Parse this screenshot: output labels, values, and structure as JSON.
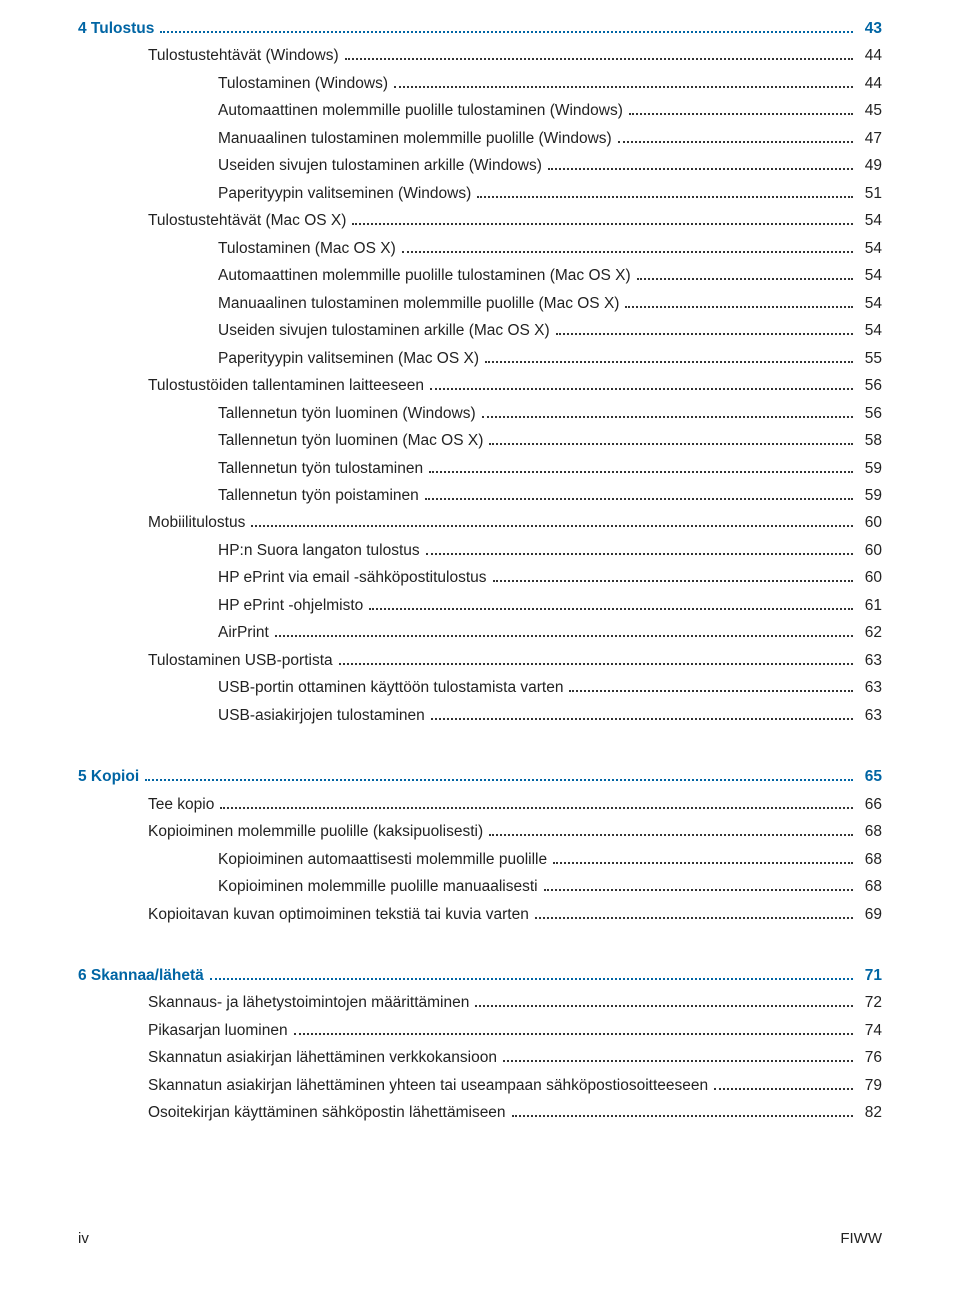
{
  "colors": {
    "link": "#0065a4",
    "text": "#222222",
    "bg": "#ffffff"
  },
  "toc": {
    "entries": [
      {
        "level": 0,
        "title": "4  Tulostus",
        "page": "43",
        "chapter": true
      },
      {
        "level": 1,
        "title": "Tulostustehtävät (Windows)",
        "page": "44"
      },
      {
        "level": 2,
        "title": "Tulostaminen (Windows)",
        "page": "44"
      },
      {
        "level": 2,
        "title": "Automaattinen molemmille puolille tulostaminen (Windows)",
        "page": "45"
      },
      {
        "level": 2,
        "title": "Manuaalinen tulostaminen molemmille puolille (Windows)",
        "page": "47"
      },
      {
        "level": 2,
        "title": "Useiden sivujen tulostaminen arkille (Windows)",
        "page": "49"
      },
      {
        "level": 2,
        "title": "Paperityypin valitseminen (Windows)",
        "page": "51"
      },
      {
        "level": 1,
        "title": "Tulostustehtävät (Mac OS X)",
        "page": "54"
      },
      {
        "level": 2,
        "title": "Tulostaminen (Mac OS X)",
        "page": "54"
      },
      {
        "level": 2,
        "title": "Automaattinen molemmille puolille tulostaminen (Mac OS X)",
        "page": "54"
      },
      {
        "level": 2,
        "title": "Manuaalinen tulostaminen molemmille puolille (Mac OS X)",
        "page": "54"
      },
      {
        "level": 2,
        "title": "Useiden sivujen tulostaminen arkille (Mac OS X)",
        "page": "54"
      },
      {
        "level": 2,
        "title": "Paperityypin valitseminen (Mac OS X)",
        "page": "55"
      },
      {
        "level": 1,
        "title": "Tulostustöiden tallentaminen laitteeseen",
        "page": "56"
      },
      {
        "level": 2,
        "title": "Tallennetun työn luominen (Windows)",
        "page": "56"
      },
      {
        "level": 2,
        "title": "Tallennetun työn luominen (Mac OS X)",
        "page": "58"
      },
      {
        "level": 2,
        "title": "Tallennetun työn tulostaminen",
        "page": "59"
      },
      {
        "level": 2,
        "title": "Tallennetun työn poistaminen",
        "page": "59"
      },
      {
        "level": 1,
        "title": "Mobiilitulostus",
        "page": "60"
      },
      {
        "level": 2,
        "title": "HP:n Suora langaton tulostus",
        "page": "60"
      },
      {
        "level": 2,
        "title": "HP ePrint via email -sähköpostitulostus",
        "page": "60"
      },
      {
        "level": 2,
        "title": "HP ePrint -ohjelmisto",
        "page": "61"
      },
      {
        "level": 2,
        "title": "AirPrint",
        "page": "62"
      },
      {
        "level": 1,
        "title": "Tulostaminen USB-portista",
        "page": "63"
      },
      {
        "level": 2,
        "title": "USB-portin ottaminen käyttöön tulostamista varten",
        "page": "63"
      },
      {
        "level": 2,
        "title": "USB-asiakirjojen tulostaminen",
        "page": "63"
      },
      {
        "spacer": true
      },
      {
        "level": 0,
        "title": "5  Kopioi",
        "page": "65",
        "chapter": true
      },
      {
        "level": 1,
        "title": "Tee kopio",
        "page": "66"
      },
      {
        "level": 1,
        "title": "Kopioiminen molemmille puolille (kaksipuolisesti)",
        "page": "68"
      },
      {
        "level": 2,
        "title": "Kopioiminen automaattisesti molemmille puolille",
        "page": "68"
      },
      {
        "level": 2,
        "title": "Kopioiminen molemmille puolille manuaalisesti",
        "page": "68"
      },
      {
        "level": 1,
        "title": "Kopioitavan kuvan optimoiminen tekstiä tai kuvia varten",
        "page": "69"
      },
      {
        "spacer": true
      },
      {
        "level": 0,
        "title": "6  Skannaa/lähetä",
        "page": "71",
        "chapter": true
      },
      {
        "level": 1,
        "title": "Skannaus- ja lähetystoimintojen määrittäminen",
        "page": "72"
      },
      {
        "level": 1,
        "title": "Pikasarjan luominen",
        "page": "74"
      },
      {
        "level": 1,
        "title": "Skannatun asiakirjan lähettäminen verkkokansioon",
        "page": "76"
      },
      {
        "level": 1,
        "title": "Skannatun asiakirjan lähettäminen yhteen tai useampaan sähköpostiosoitteeseen",
        "page": "79"
      },
      {
        "level": 1,
        "title": "Osoitekirjan käyttäminen sähköpostin lähettämiseen",
        "page": "82"
      }
    ]
  },
  "footer": {
    "left": "iv",
    "right": "FIWW"
  }
}
